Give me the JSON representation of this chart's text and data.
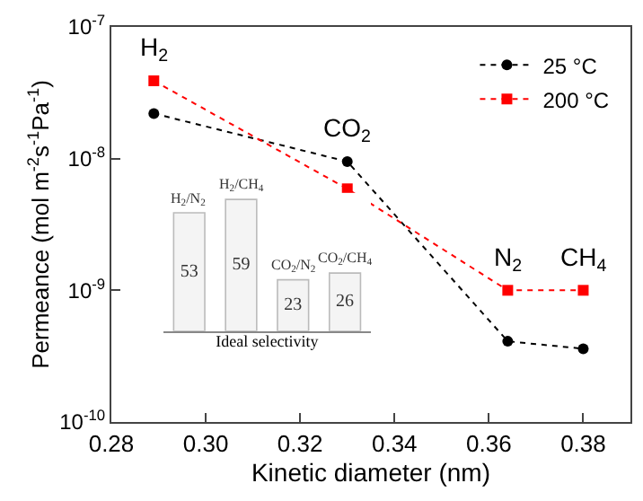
{
  "chart_data": [
    {
      "type": "line",
      "xlabel": "Kinetic diameter (nm)",
      "ylabel": "Permeance (mol m$^{-2}$s$^{-1}$Pa$^{-1}$)",
      "x": [
        0.289,
        0.33,
        0.364,
        0.38
      ],
      "series": [
        {
          "name": "25 °C",
          "color": "#000000",
          "values": [
            2.2e-08,
            9.5e-09,
            4.1e-10,
            3.6e-10
          ],
          "marker": "circle"
        },
        {
          "name": "200 °C",
          "color": "#ff0000",
          "values": [
            3.9e-08,
            5.9e-09,
            1e-09,
            1e-09
          ],
          "marker": "square"
        }
      ],
      "log": true,
      "xlim": [
        0.28,
        0.39
      ],
      "xticks": [
        {
          "value": 0.28,
          "label": "0.28"
        },
        {
          "value": 0.3,
          "label": "0.30"
        },
        {
          "value": 0.32,
          "label": "0.32"
        },
        {
          "value": 0.34,
          "label": "0.34"
        },
        {
          "value": 0.36,
          "label": "0.36"
        },
        {
          "value": 0.38,
          "label": "0.38"
        }
      ],
      "ylim": [
        1e-10,
        1e-07
      ],
      "yticks": [
        {
          "value": 1e-10,
          "label": "10$^{-10}$"
        },
        {
          "value": 1e-09,
          "label": "10$^{-9}$"
        },
        {
          "value": 1e-08,
          "label": "10$^{-8}$"
        },
        {
          "value": 1e-07,
          "label": "10$^{-7}$"
        }
      ],
      "line_style": "dotted",
      "legend": "top right",
      "annotations": [
        {
          "text": "H$_{2}$",
          "x": 0.289,
          "y": 3.9e-08
        },
        {
          "text": "CO$_{2}$",
          "x": 0.33,
          "y": 9.5e-09
        },
        {
          "text": "N$_{2}$",
          "x": 0.364,
          "y": 1e-09
        },
        {
          "text": "CH$_{4}$",
          "x": 0.38,
          "y": 1e-09
        }
      ]
    },
    {
      "type": "bar",
      "xlabel": "Ideal selectivity",
      "categories": [
        "H$_{2}$/N$_{2}$",
        "H$_{2}$/CH$_{4}$",
        "CO$_{2}$/N$_{2}$",
        "CO$_{2}$/CH$_{4}$"
      ],
      "values": [
        53,
        59,
        23,
        26
      ],
      "color": "#f4f4f4",
      "data_labels": true,
      "tick_labels": false
    }
  ]
}
